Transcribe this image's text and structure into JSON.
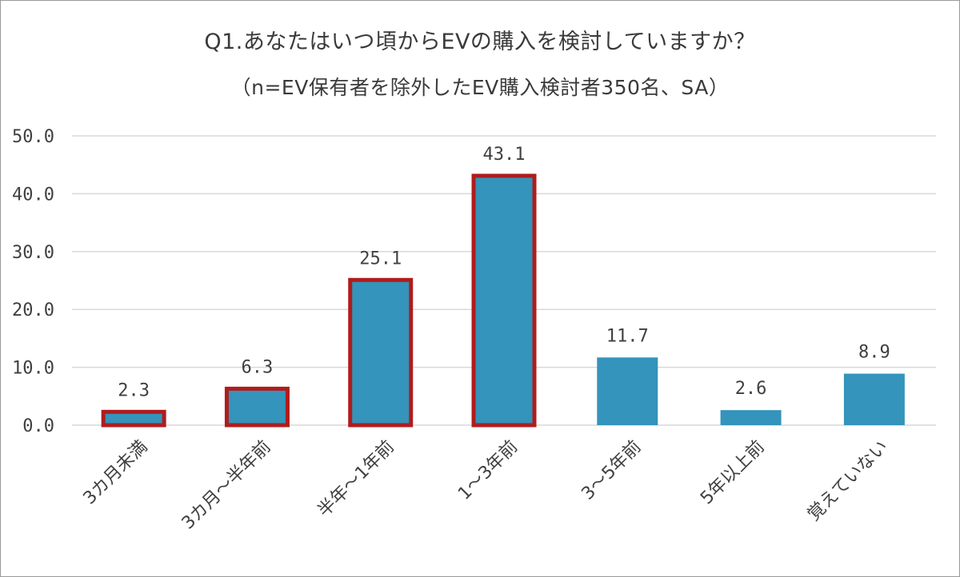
{
  "chart_data": {
    "type": "bar",
    "title": "Q1.あなたはいつ頃からEVの購入を検討していますか？",
    "subtitle": "（n=EV保有者を除外したEV購入検討者350名、SA）",
    "categories": [
      "3カ月未満",
      "3カ月～半年前",
      "半年～1年前",
      "1～3年前",
      "3～5年前",
      "5年以上前",
      "覚えていない"
    ],
    "values": [
      2.3,
      6.3,
      25.1,
      43.1,
      11.7,
      2.6,
      8.9
    ],
    "value_labels": [
      "2.3",
      "6.3",
      "25.1",
      "43.1",
      "11.7",
      "2.6",
      "8.9"
    ],
    "highlighted": [
      true,
      true,
      true,
      true,
      false,
      false,
      false
    ],
    "ylim": [
      0,
      50
    ],
    "yticks": [
      "0.0",
      "10.0",
      "20.0",
      "30.0",
      "40.0",
      "50.0"
    ],
    "grid": true,
    "colors": {
      "bar": "#3494bb",
      "highlight_border": "#b01c1c",
      "grid": "#d9d9d9"
    }
  }
}
